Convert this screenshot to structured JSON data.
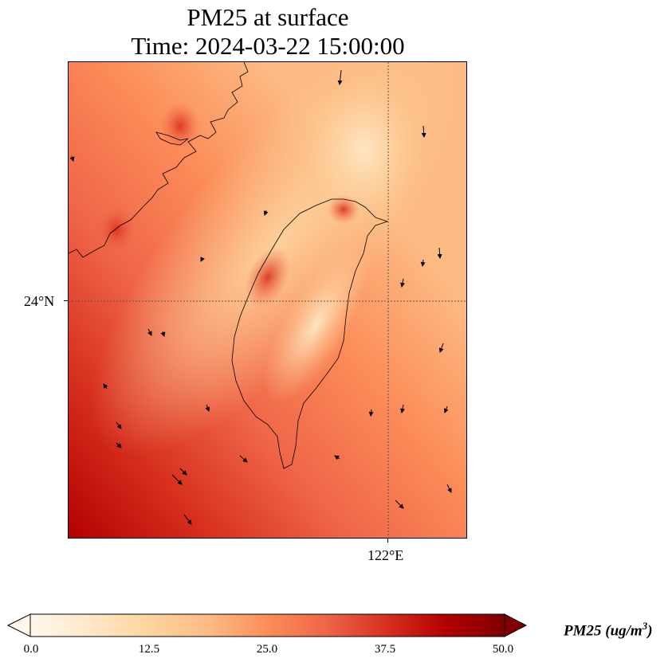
{
  "title": {
    "line1": "PM25 at surface",
    "line2": "Time: 2024-03-22 15:00:00"
  },
  "map": {
    "projection": "lat-lon",
    "region": "Taiwan Strait",
    "grid_lat_label": "24°N",
    "grid_lon_label": "122°E",
    "field": "PM25",
    "wind_vectors": true,
    "gridlines": "dotted"
  },
  "colorbar": {
    "label_main": "PM25 (ug/m",
    "label_sup": "3",
    "label_end": ")",
    "ticks": [
      "0.0",
      "12.5",
      "25.0",
      "37.5",
      "50.0"
    ],
    "min": 0,
    "max": 50,
    "extend": "both",
    "colormap": "OrRd",
    "colors": [
      "#fff7ec",
      "#fee8c8",
      "#fdd49e",
      "#fdbb84",
      "#fc8d59",
      "#ef6548",
      "#d7301f",
      "#b30000",
      "#7f0000"
    ]
  }
}
